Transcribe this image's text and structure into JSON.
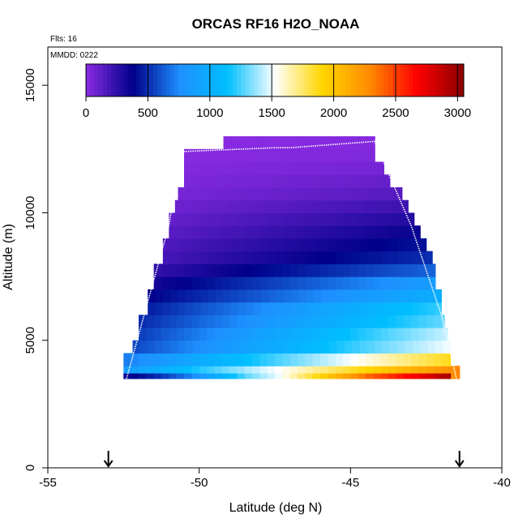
{
  "chart_data": {
    "type": "heatmap",
    "title": "ORCAS RF16 H2O_NOAA",
    "annotations": [
      "Flts: 16",
      "MMDD: 0222"
    ],
    "xlabel": "Latitude (deg N)",
    "ylabel": "Altitude (m)",
    "xlim": [
      -55,
      -40
    ],
    "ylim": [
      0,
      16500
    ],
    "x_ticks": [
      "-55",
      "-50",
      "-45",
      "-40"
    ],
    "y_ticks": [
      "0",
      "5000",
      "10000",
      "15000"
    ],
    "colorbar": {
      "range": [
        0,
        3050
      ],
      "ticks": [
        "0",
        "500",
        "1000",
        "1500",
        "2000",
        "2500",
        "3000"
      ],
      "colors": [
        "#8a2be2",
        "#00008b",
        "#1e90ff",
        "#00bfff",
        "#ffffff",
        "#ffd700",
        "#ff8c00",
        "#ff0000",
        "#8b0000"
      ]
    },
    "markers": [
      {
        "lat": -53.0,
        "symbol": "arrow-down"
      },
      {
        "lat": -41.4,
        "symbol": "arrow-down"
      }
    ],
    "altitude_bins_m": [
      3500,
      4000,
      4500,
      5000,
      5500,
      6000,
      6500,
      7000,
      7500,
      8000,
      8500,
      9000,
      9500,
      10000,
      10500,
      11000,
      11500,
      12000,
      12500
    ],
    "bin_left_edge_lat": [
      -52.5,
      -52.5,
      -52.2,
      -52.0,
      -52.0,
      -51.7,
      -51.7,
      -51.5,
      -51.5,
      -51.2,
      -51.2,
      -51.0,
      -51.0,
      -50.8,
      -50.7,
      -50.5,
      -50.5,
      -50.5,
      -49.2
    ],
    "bin_right_edge_lat": [
      -41.4,
      -41.7,
      -41.7,
      -41.8,
      -41.9,
      -42.0,
      -42.0,
      -42.2,
      -42.2,
      -42.3,
      -42.5,
      -42.7,
      -42.9,
      -43.1,
      -43.3,
      -43.7,
      -43.9,
      -44.2,
      -44.2
    ],
    "bin_mean_h2o": [
      1600,
      1300,
      1050,
      1000,
      900,
      850,
      700,
      600,
      450,
      350,
      300,
      250,
      200,
      150,
      100,
      70,
      40,
      20,
      10
    ],
    "near_surface_profile_lat": [
      -52.5,
      -51.5,
      -50.5,
      -49.5,
      -48.5,
      -47.5,
      -46.5,
      -45.5,
      -44.5,
      -43.5,
      -42.5,
      -41.7
    ],
    "near_surface_profile_h2o": [
      350,
      500,
      700,
      1000,
      1300,
      1500,
      1800,
      2100,
      2400,
      2600,
      2800,
      3000
    ],
    "flight_track": [
      {
        "lat": -52.4,
        "alt": 3500
      },
      {
        "lat": -51.7,
        "alt": 6500
      },
      {
        "lat": -51.0,
        "alt": 9500
      },
      {
        "lat": -50.6,
        "alt": 12400
      },
      {
        "lat": -47.5,
        "alt": 12550
      },
      {
        "lat": -47.0,
        "alt": 12550
      },
      {
        "lat": -44.2,
        "alt": 12800
      },
      {
        "lat": -43.0,
        "alt": 9500
      },
      {
        "lat": -42.0,
        "alt": 6000
      },
      {
        "lat": -41.5,
        "alt": 3500
      }
    ]
  }
}
